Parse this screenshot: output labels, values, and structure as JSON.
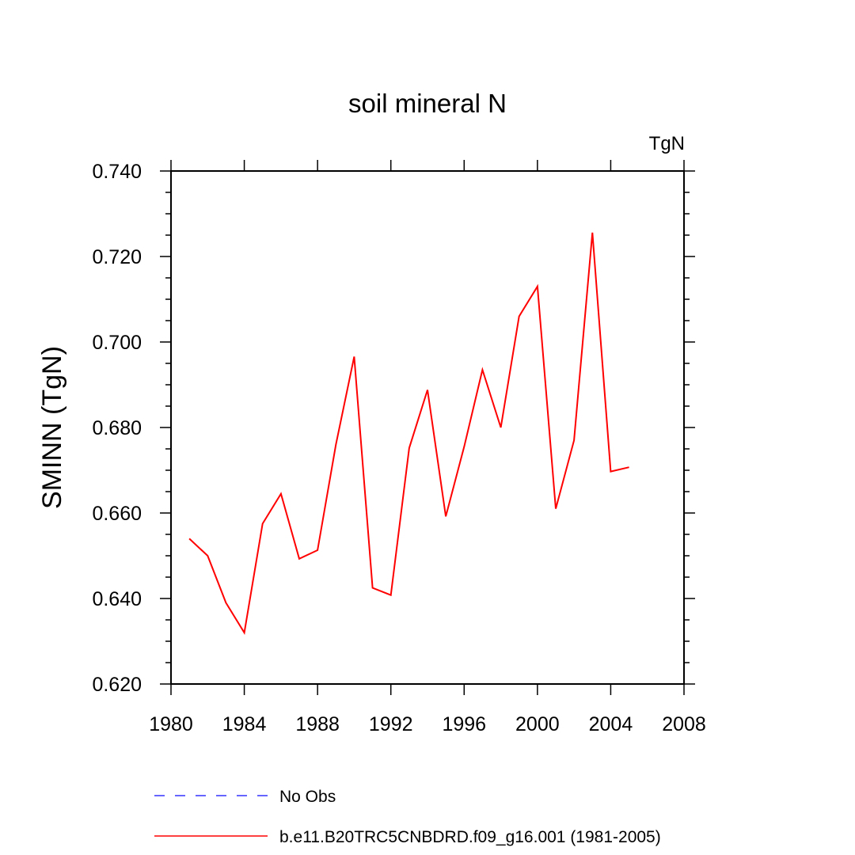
{
  "chart_data": {
    "type": "line",
    "title": "soil mineral N",
    "units_label": "TgN",
    "xlabel": "",
    "ylabel": "SMINN  (TgN)",
    "xlim": [
      1980,
      2008
    ],
    "ylim": [
      0.62,
      0.74
    ],
    "x_ticks": [
      1980,
      1984,
      1988,
      1992,
      1996,
      2000,
      2004,
      2008
    ],
    "x_tick_labels": [
      "1980",
      "1984",
      "1988",
      "1992",
      "1996",
      "2000",
      "2004",
      "2008"
    ],
    "y_ticks": [
      0.62,
      0.64,
      0.66,
      0.68,
      0.7,
      0.72,
      0.74
    ],
    "y_tick_labels": [
      "0.620",
      "0.640",
      "0.660",
      "0.680",
      "0.700",
      "0.720",
      "0.740"
    ],
    "grid": false,
    "legend_position": "bottom",
    "series": [
      {
        "name": "b.e11.B20TRC5CNBDRD.f09_g16.001 (1981-2005)",
        "color": "#ff0000",
        "style": "solid",
        "x": [
          1981,
          1982,
          1983,
          1984,
          1985,
          1986,
          1987,
          1988,
          1989,
          1990,
          1991,
          1992,
          1993,
          1994,
          1995,
          1996,
          1997,
          1998,
          1999,
          2000,
          2001,
          2002,
          2003,
          2004,
          2005
        ],
        "values": [
          0.654,
          0.65,
          0.639,
          0.632,
          0.6575,
          0.6645,
          0.6493,
          0.6513,
          0.676,
          0.6966,
          0.6425,
          0.6408,
          0.6752,
          0.6888,
          0.6592,
          0.6755,
          0.6935,
          0.68,
          0.706,
          0.713,
          0.661,
          0.677,
          0.7256,
          0.6697,
          0.6707
        ]
      }
    ],
    "legend": [
      {
        "label": "No Obs",
        "color": "#3333ff",
        "style": "dashed"
      },
      {
        "label": "b.e11.B20TRC5CNBDRD.f09_g16.001 (1981-2005)",
        "color": "#ff0000",
        "style": "solid"
      }
    ]
  }
}
